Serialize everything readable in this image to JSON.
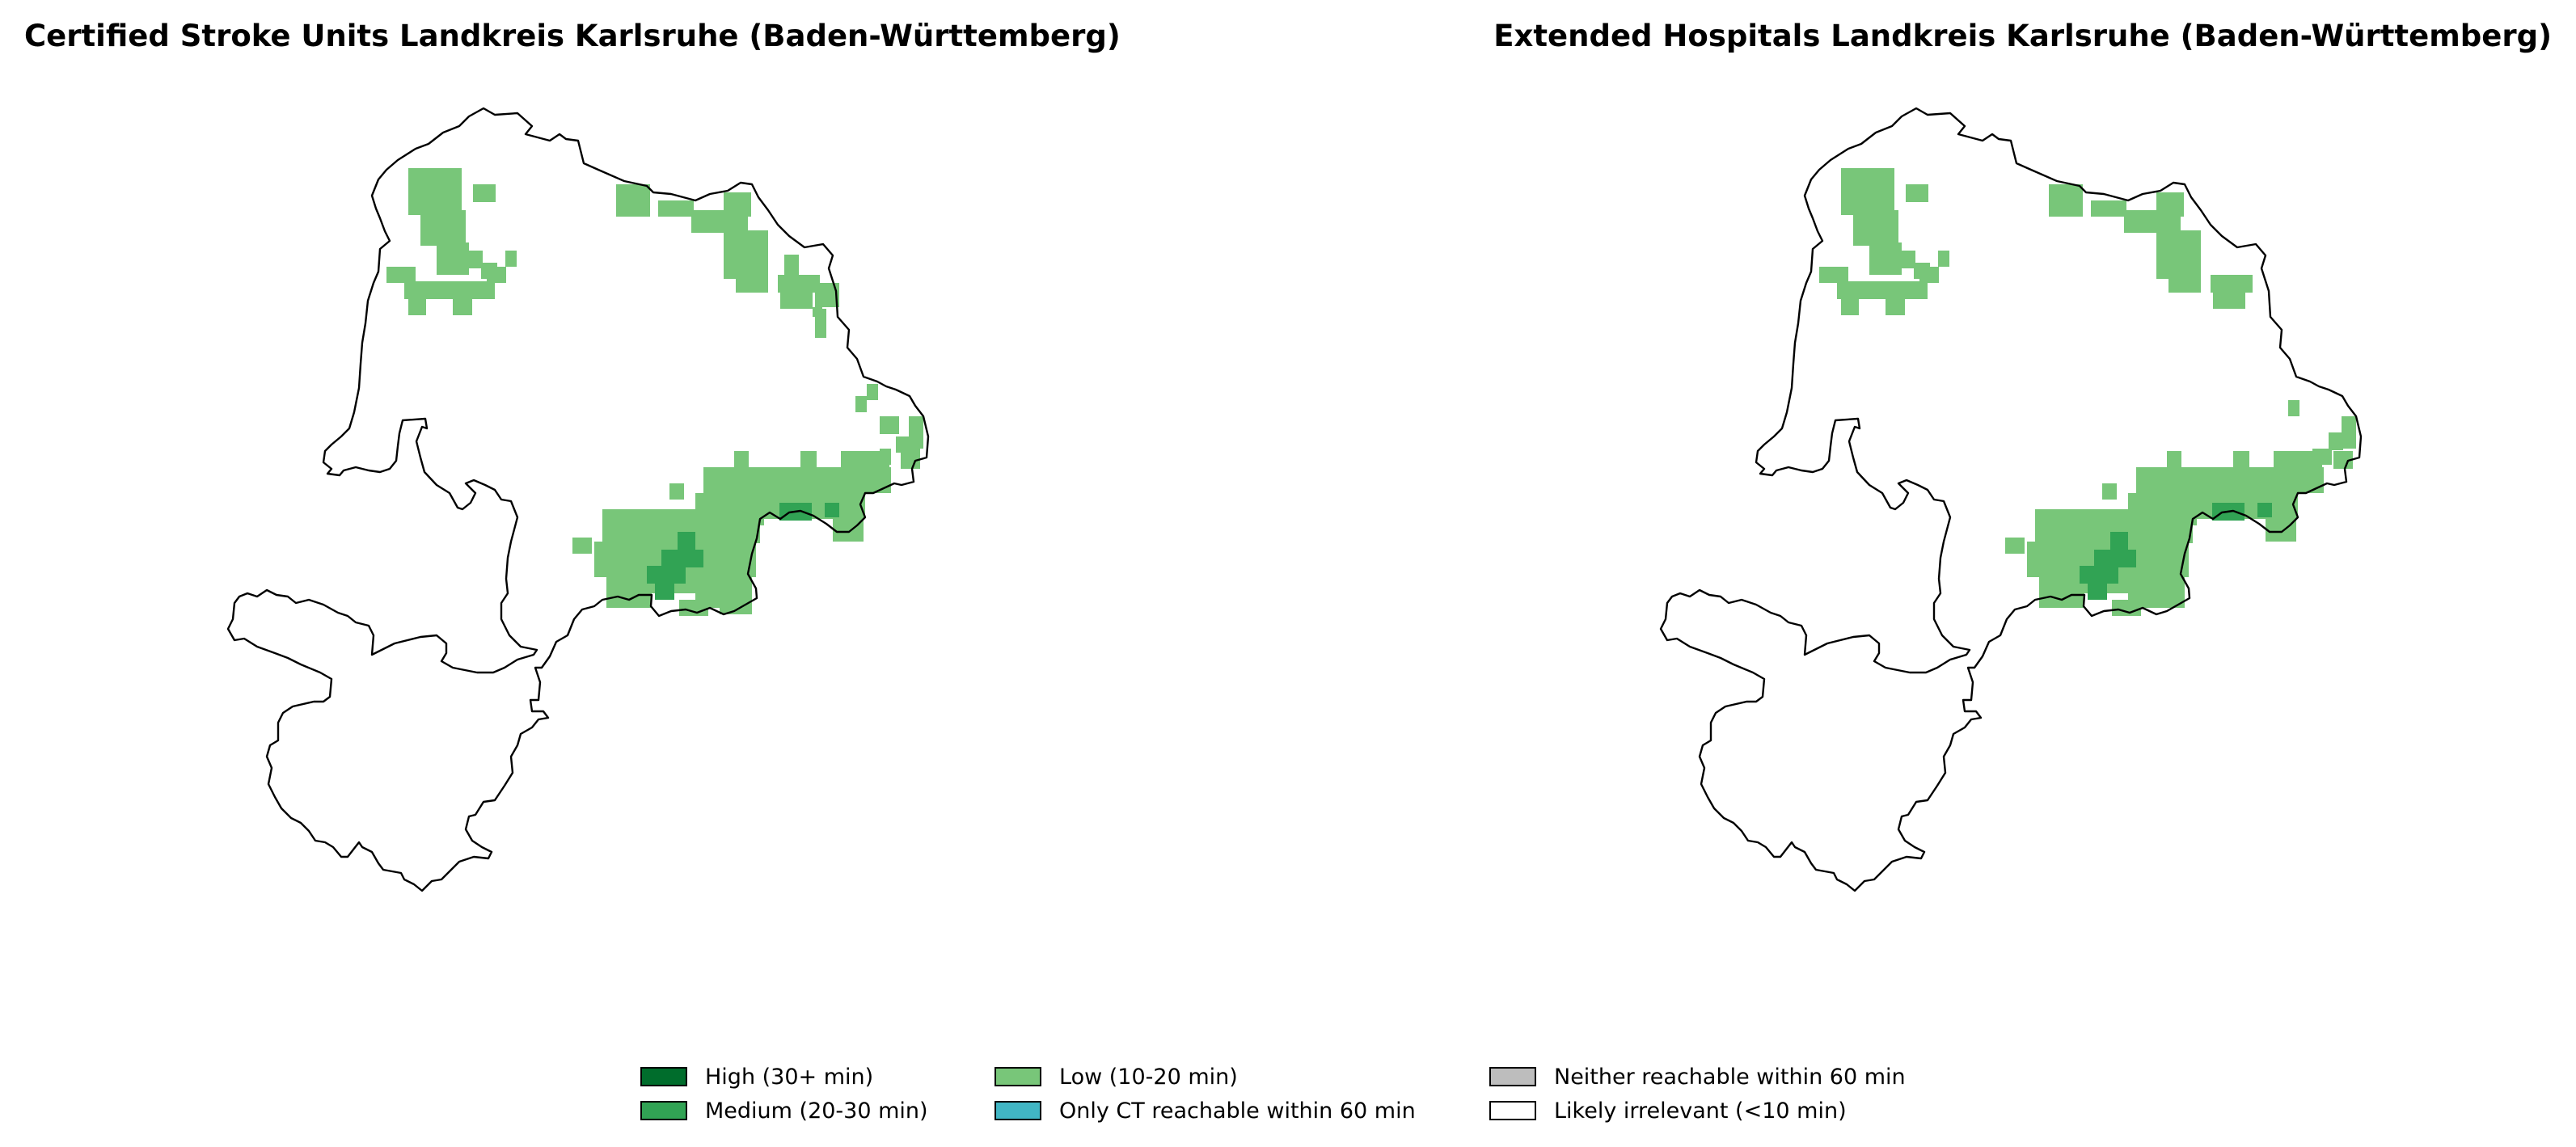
{
  "maps": [
    {
      "title": "Certified Stroke Units Landkreis Karlsruhe (Baden-Württemberg)",
      "outline_color": "#000000"
    },
    {
      "title": "Extended Hospitals Landkreis Karlsruhe (Baden-Württemberg)",
      "outline_color": "#000000"
    }
  ],
  "legend": {
    "items": [
      {
        "label": "High (30+ min)",
        "color": "#006d2c"
      },
      {
        "label": "Medium (20-30 min)",
        "color": "#31a354"
      },
      {
        "label": "Low (10-20 min)",
        "color": "#78c679"
      },
      {
        "label": "Only CT reachable within 60 min",
        "color": "#41b6c4"
      },
      {
        "label": "Neither reachable within 60 min",
        "color": "#bdbdbd"
      },
      {
        "label": "Likely irrelevant (<10 min)",
        "color": "#ffffff"
      }
    ]
  }
}
